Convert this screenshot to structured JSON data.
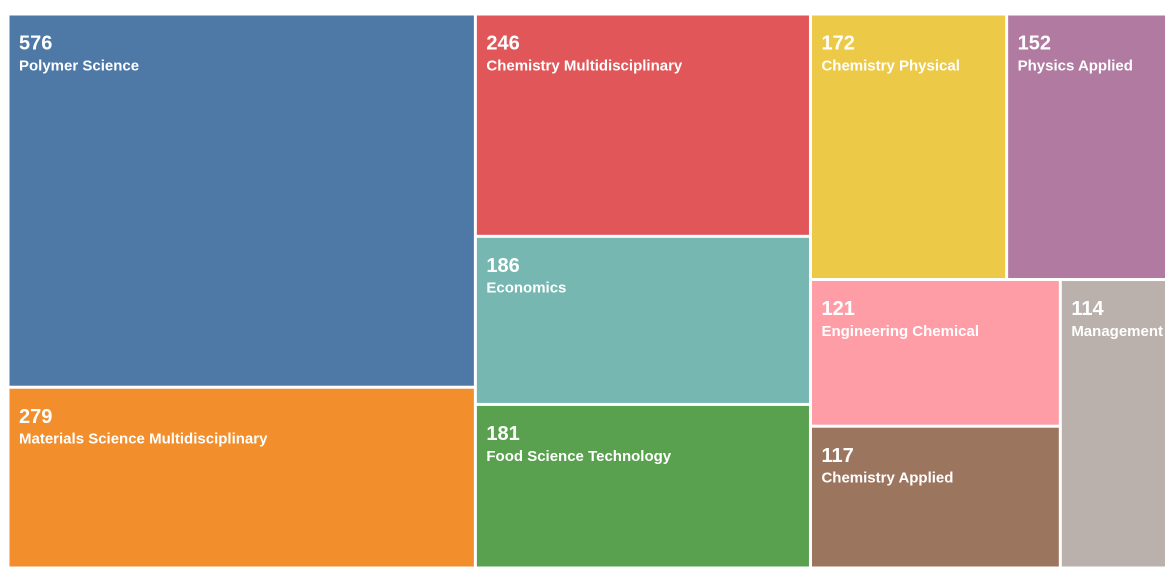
{
  "chart_data": {
    "type": "treemap",
    "categories": [
      "Polymer Science",
      "Materials Science Multidisciplinary",
      "Chemistry Multidisciplinary",
      "Economics",
      "Food Science Technology",
      "Chemistry Physical",
      "Physics Applied",
      "Engineering Chemical",
      "Chemistry Applied",
      "Management"
    ],
    "values": [
      576,
      279,
      246,
      186,
      181,
      172,
      152,
      121,
      117,
      114
    ],
    "colors": [
      "#4e79a7",
      "#f28e2b",
      "#e15759",
      "#76b7b2",
      "#59a14f",
      "#edc948",
      "#b07aa1",
      "#ff9da7",
      "#9c755f",
      "#bab0ac"
    ]
  }
}
